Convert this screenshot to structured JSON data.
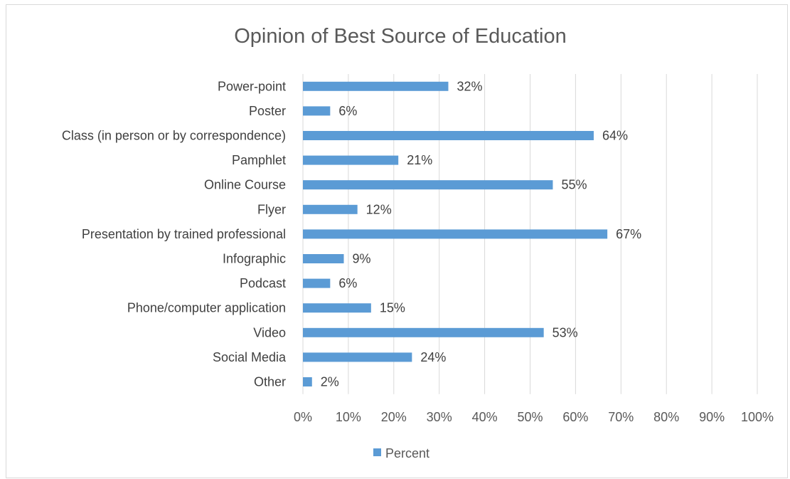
{
  "chart_data": {
    "type": "bar",
    "orientation": "horizontal",
    "title": "Opinion of Best Source of Education",
    "categories": [
      "Power-point",
      "Poster",
      "Class (in person or by correspondence)",
      "Pamphlet",
      "Online Course",
      "Flyer",
      "Presentation by trained professional",
      "Infographic",
      "Podcast",
      "Phone/computer application",
      "Video",
      "Social Media",
      "Other"
    ],
    "series": [
      {
        "name": "Percent",
        "values": [
          32,
          6,
          64,
          21,
          55,
          12,
          67,
          9,
          6,
          15,
          53,
          24,
          2
        ],
        "data_labels": [
          "32%",
          "6%",
          "64%",
          "21%",
          "55%",
          "12%",
          "67%",
          "9%",
          "6%",
          "15%",
          "53%",
          "24%",
          "2%"
        ],
        "color": "#5b9bd5"
      }
    ],
    "xlim": [
      0,
      100
    ],
    "x_ticks": [
      "0%",
      "10%",
      "20%",
      "30%",
      "40%",
      "50%",
      "60%",
      "70%",
      "80%",
      "90%",
      "100%"
    ],
    "grid": "vertical",
    "legend_position": "bottom"
  }
}
